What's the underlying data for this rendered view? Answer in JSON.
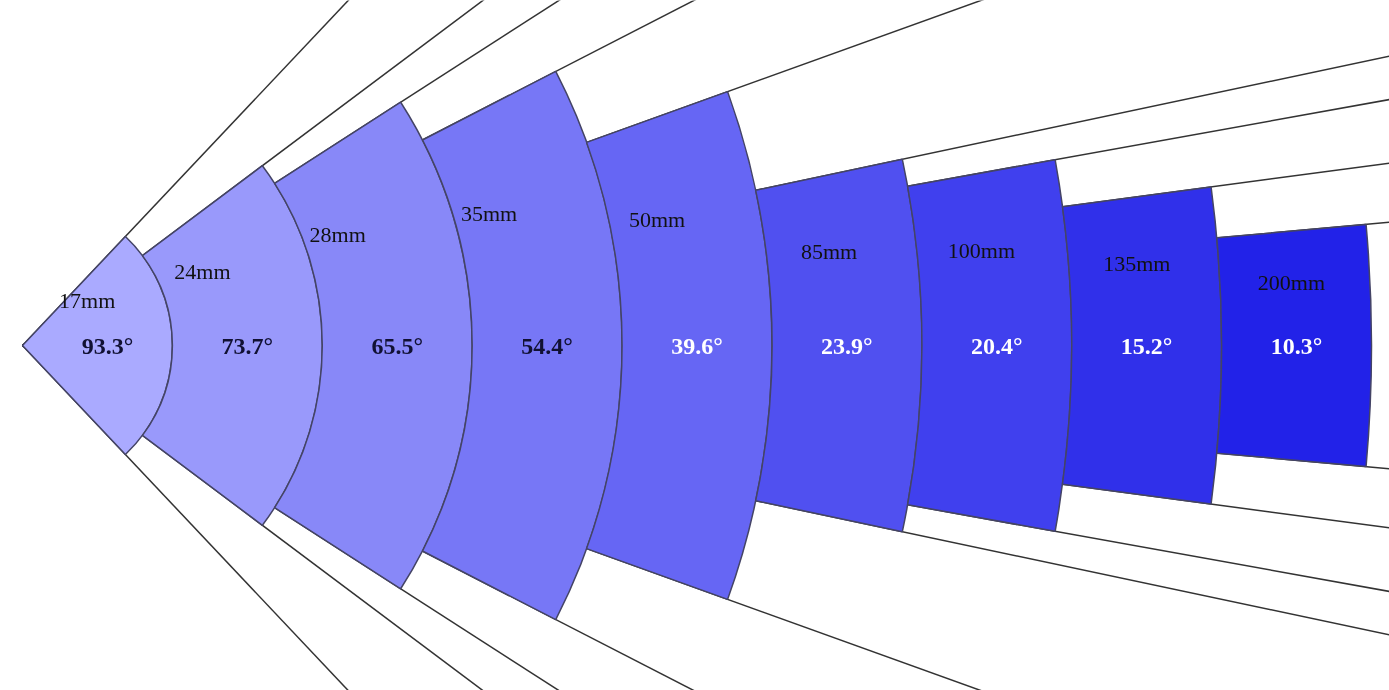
{
  "chart_data": {
    "type": "other",
    "categories": [
      "17mm",
      "24mm",
      "28mm",
      "35mm",
      "50mm",
      "85mm",
      "100mm",
      "135mm",
      "200mm"
    ],
    "values": [
      93.3,
      73.7,
      65.5,
      54.4,
      39.6,
      23.9,
      20.4,
      15.2,
      10.3
    ],
    "value_labels": [
      "93.3°",
      "73.7°",
      "65.5°",
      "54.4°",
      "39.6°",
      "23.9°",
      "20.4°",
      "15.2°",
      "10.3°"
    ],
    "colors": [
      "#aaaaff",
      "#9999fb",
      "#8888f8",
      "#7777f6",
      "#6666f4",
      "#5050f0",
      "#4040ee",
      "#3030ea",
      "#2222e8"
    ]
  }
}
